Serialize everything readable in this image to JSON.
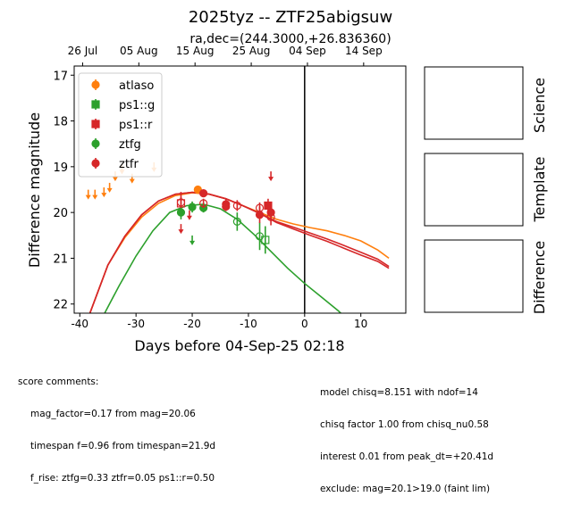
{
  "chart_data": {
    "type": "scatter",
    "title": "2025tyz -- ZTF25abigsuw",
    "subtitle": "ra,dec=(244.3000,+26.836360)",
    "xlabel": "Days before 04-Sep-25 02:18",
    "ylabel": "Difference magnitude",
    "xlim": [
      -41,
      18
    ],
    "ylim": [
      22.2,
      16.8
    ],
    "x_ticks": [
      -40,
      -30,
      -20,
      -10,
      0,
      10
    ],
    "y_ticks": [
      17,
      18,
      19,
      20,
      21,
      22
    ],
    "top_axis_ticks": [
      {
        "x": -39.5,
        "label": "26 Jul"
      },
      {
        "x": -29.5,
        "label": "05 Aug"
      },
      {
        "x": -19.5,
        "label": "15 Aug"
      },
      {
        "x": -9.5,
        "label": "25 Aug"
      },
      {
        "x": 0.5,
        "label": "04 Sep"
      },
      {
        "x": 10.5,
        "label": "14 Sep"
      }
    ],
    "vline_x": 0,
    "legend_position": "top-left",
    "series": [
      {
        "name": "atlaso",
        "color": "#ff7f0e",
        "marker": "circle",
        "detections": [
          {
            "x": -19,
            "y": 19.5,
            "err": 0.08
          }
        ],
        "upper_limits": [
          {
            "x": -38.5,
            "y": 19.6
          },
          {
            "x": -37.3,
            "y": 19.6
          },
          {
            "x": -35.7,
            "y": 19.55
          },
          {
            "x": -34.7,
            "y": 19.45
          },
          {
            "x": -33.7,
            "y": 19.2
          },
          {
            "x": -32.5,
            "y": 19.05
          },
          {
            "x": -30.7,
            "y": 19.25
          },
          {
            "x": -26.8,
            "y": 19.0
          }
        ],
        "model": [
          [
            -38.5,
            22.3
          ],
          [
            -35,
            21.15
          ],
          [
            -32,
            20.55
          ],
          [
            -29,
            20.1
          ],
          [
            -26,
            19.8
          ],
          [
            -23,
            19.63
          ],
          [
            -20,
            19.57
          ],
          [
            -17,
            19.6
          ],
          [
            -14,
            19.7
          ],
          [
            -11,
            19.85
          ],
          [
            -8,
            20.0
          ],
          [
            -5,
            20.15
          ],
          [
            -2,
            20.25
          ],
          [
            1,
            20.33
          ],
          [
            4,
            20.4
          ],
          [
            7,
            20.5
          ],
          [
            10,
            20.62
          ],
          [
            13,
            20.82
          ],
          [
            15,
            21.0
          ]
        ]
      },
      {
        "name": "ps1::g",
        "color": "#2ca02c",
        "marker": "square",
        "detections": [
          {
            "x": -7,
            "y": 20.6,
            "err": 0.3,
            "open": true
          }
        ],
        "upper_limits": []
      },
      {
        "name": "ps1::r",
        "color": "#d62728",
        "marker": "square",
        "detections": [
          {
            "x": -6.5,
            "y": 19.85,
            "err": 0.15
          },
          {
            "x": -22,
            "y": 19.8,
            "err": 0.25,
            "open": true
          }
        ],
        "upper_limits": []
      },
      {
        "name": "ztfg",
        "color": "#2ca02c",
        "marker": "circle",
        "detections": [
          {
            "x": -22,
            "y": 20.0,
            "err": 0.15
          },
          {
            "x": -20,
            "y": 19.88,
            "err": 0.12
          },
          {
            "x": -18,
            "y": 19.9,
            "err": 0.1
          },
          {
            "x": -12,
            "y": 20.2,
            "err": 0.2,
            "open": true
          },
          {
            "x": -8,
            "y": 20.52,
            "err": 0.3,
            "open": true
          }
        ],
        "upper_limits": [
          {
            "x": -20,
            "y": 20.6
          }
        ],
        "model": [
          [
            -36,
            22.3
          ],
          [
            -33,
            21.6
          ],
          [
            -30,
            20.95
          ],
          [
            -27,
            20.4
          ],
          [
            -24,
            20.0
          ],
          [
            -21,
            19.85
          ],
          [
            -18,
            19.82
          ],
          [
            -15,
            19.92
          ],
          [
            -12,
            20.15
          ],
          [
            -9,
            20.48
          ],
          [
            -6,
            20.85
          ],
          [
            -3,
            21.22
          ],
          [
            0,
            21.55
          ],
          [
            3,
            21.85
          ],
          [
            6,
            22.15
          ],
          [
            7.3,
            22.3
          ]
        ]
      },
      {
        "name": "ztfr",
        "color": "#d62728",
        "marker": "circle",
        "detections": [
          {
            "x": -22,
            "y": 19.78,
            "err": 0.12,
            "open": true
          },
          {
            "x": -18,
            "y": 19.58,
            "err": 0.08
          },
          {
            "x": -18,
            "y": 19.8,
            "err": 0.1,
            "open": true
          },
          {
            "x": -14,
            "y": 19.82,
            "err": 0.12
          },
          {
            "x": -14,
            "y": 19.87,
            "err": 0.1
          },
          {
            "x": -12,
            "y": 19.85,
            "err": 0.12,
            "open": true
          },
          {
            "x": -8,
            "y": 20.05,
            "err": 0.18
          },
          {
            "x": -8,
            "y": 19.9,
            "err": 0.12,
            "open": true
          },
          {
            "x": -6,
            "y": 20.1,
            "err": 0.18,
            "open": true
          },
          {
            "x": -6,
            "y": 20.0,
            "err": 0.15
          }
        ],
        "upper_limits": [
          {
            "x": -22,
            "y": 20.35
          },
          {
            "x": -20.5,
            "y": 20.05
          },
          {
            "x": -6,
            "y": 19.2
          }
        ],
        "model": [
          [
            -38.5,
            22.3
          ],
          [
            -35,
            21.15
          ],
          [
            -32,
            20.52
          ],
          [
            -29,
            20.05
          ],
          [
            -26,
            19.75
          ],
          [
            -23,
            19.6
          ],
          [
            -20,
            19.56
          ],
          [
            -17,
            19.6
          ],
          [
            -14,
            19.7
          ],
          [
            -11,
            19.85
          ],
          [
            -8,
            20.02
          ],
          [
            -5,
            20.2
          ],
          [
            -2,
            20.32
          ],
          [
            1,
            20.45
          ],
          [
            4,
            20.58
          ],
          [
            7,
            20.72
          ],
          [
            10,
            20.87
          ],
          [
            13,
            21.02
          ],
          [
            15,
            21.18
          ]
        ],
        "model2": [
          [
            -38.5,
            22.3
          ],
          [
            -35,
            21.15
          ],
          [
            -32,
            20.52
          ],
          [
            -29,
            20.05
          ],
          [
            -26,
            19.75
          ],
          [
            -23,
            19.6
          ],
          [
            -20,
            19.56
          ],
          [
            -17,
            19.6
          ],
          [
            -14,
            19.7
          ],
          [
            -11,
            19.85
          ],
          [
            -8,
            20.02
          ],
          [
            -5,
            20.22
          ],
          [
            -2,
            20.36
          ],
          [
            1,
            20.5
          ],
          [
            4,
            20.63
          ],
          [
            7,
            20.78
          ],
          [
            10,
            20.93
          ],
          [
            13,
            21.07
          ],
          [
            15,
            21.22
          ]
        ]
      }
    ]
  },
  "side_panels": [
    "Science",
    "Template",
    "Difference"
  ],
  "score_comments": {
    "heading": "score comments:",
    "lines": [
      "mag_factor=0.17 from mag=20.06",
      "timespan f=0.96 from timespan=21.9d",
      "f_rise: ztfg=0.33 ztfr=0.05 ps1::r=0.50"
    ]
  },
  "model_comments": [
    "model chisq=8.151 with ndof=14",
    "chisq factor 1.00 from chisq_nu0.58",
    "interest 0.01 from peak_dt=+20.41d",
    "exclude: mag=20.1>19.0 (faint lim)"
  ]
}
